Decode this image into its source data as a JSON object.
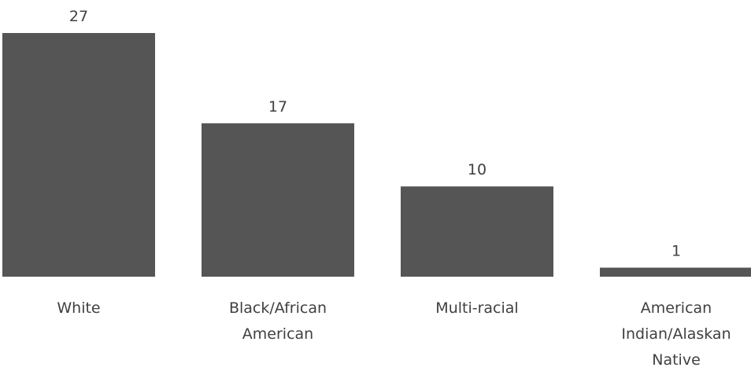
{
  "chart_data": {
    "type": "bar",
    "categories": [
      "White",
      "Black/African American",
      "Multi-racial",
      "American Indian/Alaskan Native"
    ],
    "category_lines": [
      [
        "White"
      ],
      [
        "Black/African",
        "American"
      ],
      [
        "Multi-racial"
      ],
      [
        "American",
        "Indian/Alaskan",
        "Native"
      ]
    ],
    "values": [
      27,
      17,
      10,
      1
    ],
    "title": "",
    "xlabel": "",
    "ylabel": "",
    "ylim": [
      0,
      27
    ],
    "grid": false,
    "legend": "none",
    "data_labels": true,
    "colors": {
      "bar": "#555555",
      "text": "#404040"
    }
  }
}
